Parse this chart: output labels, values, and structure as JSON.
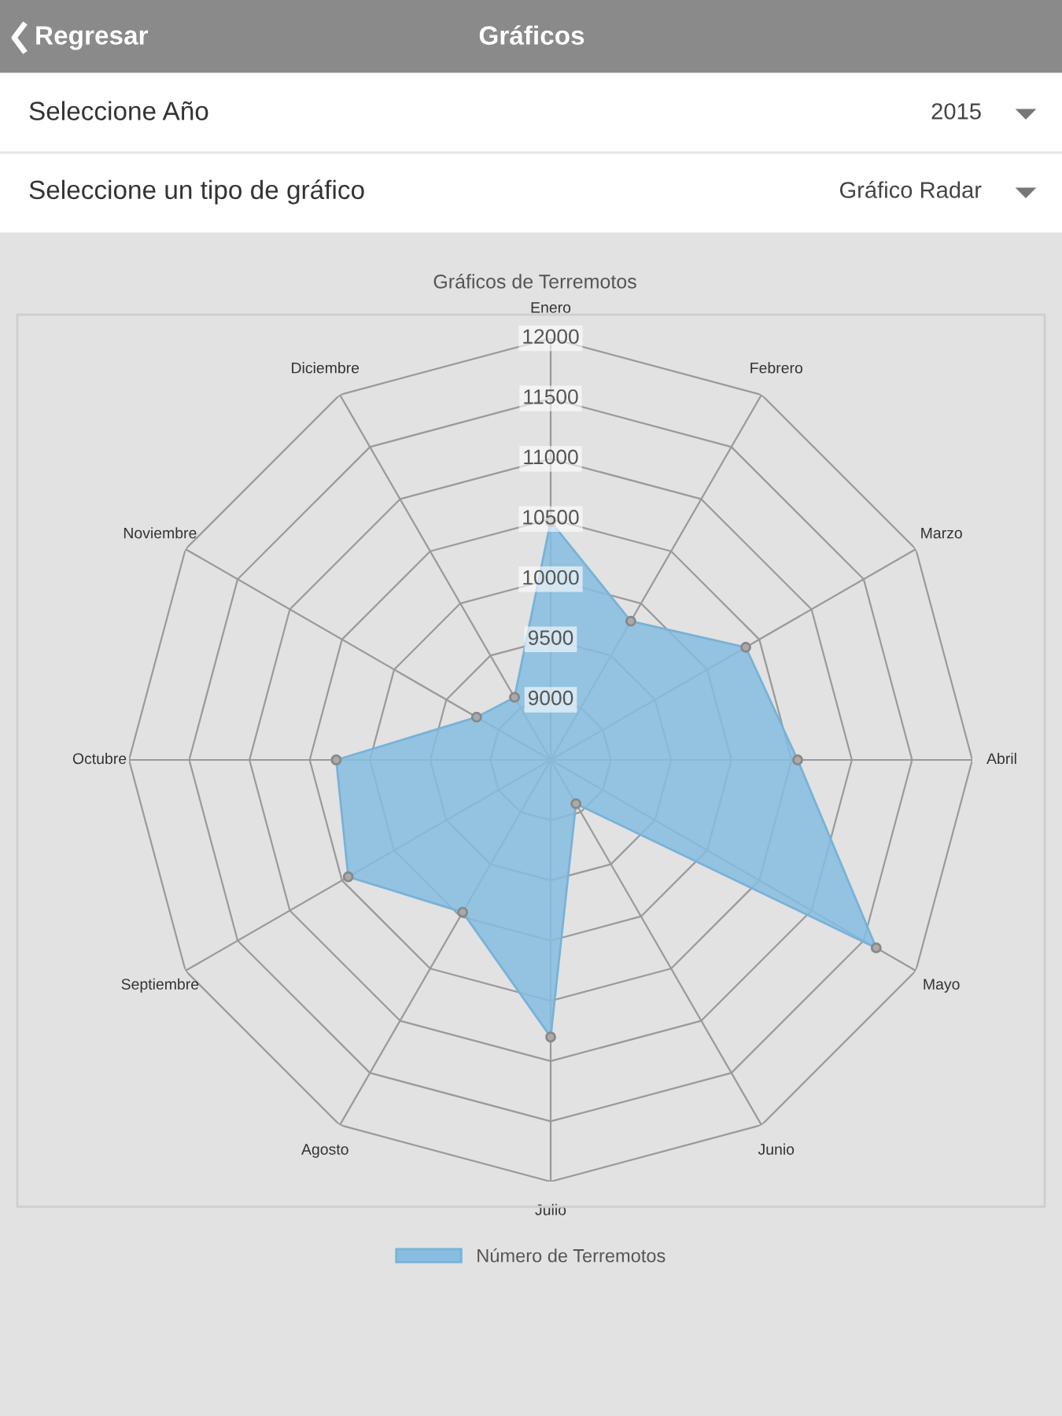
{
  "chart_data": {
    "type": "radar",
    "title": "Gráficos de Terremotos",
    "categories": [
      "Enero",
      "Febrero",
      "Marzo",
      "Abril",
      "Mayo",
      "Junio",
      "Julio",
      "Agosto",
      "Septiembre",
      "Octubre",
      "Noviembre",
      "Diciembre"
    ],
    "series": [
      {
        "name": "Número de Terremotos",
        "color": "#86bde0",
        "values": [
          10480,
          9830,
          10370,
          10550,
          11620,
          8920,
          10800,
          9960,
          10440,
          10280,
          9210,
          9100
        ]
      }
    ],
    "ylim": [
      8500,
      12000
    ],
    "yticks": [
      9000,
      9500,
      10000,
      10500,
      11000,
      11500,
      12000
    ],
    "grid": true,
    "legend": "bottom",
    "marker": "circle",
    "annotations": [
      "Regresar",
      "Gráficos",
      "Seleccione Año",
      "2015",
      "Seleccione un tipo de gráfico",
      "Gráfico Radar"
    ]
  }
}
